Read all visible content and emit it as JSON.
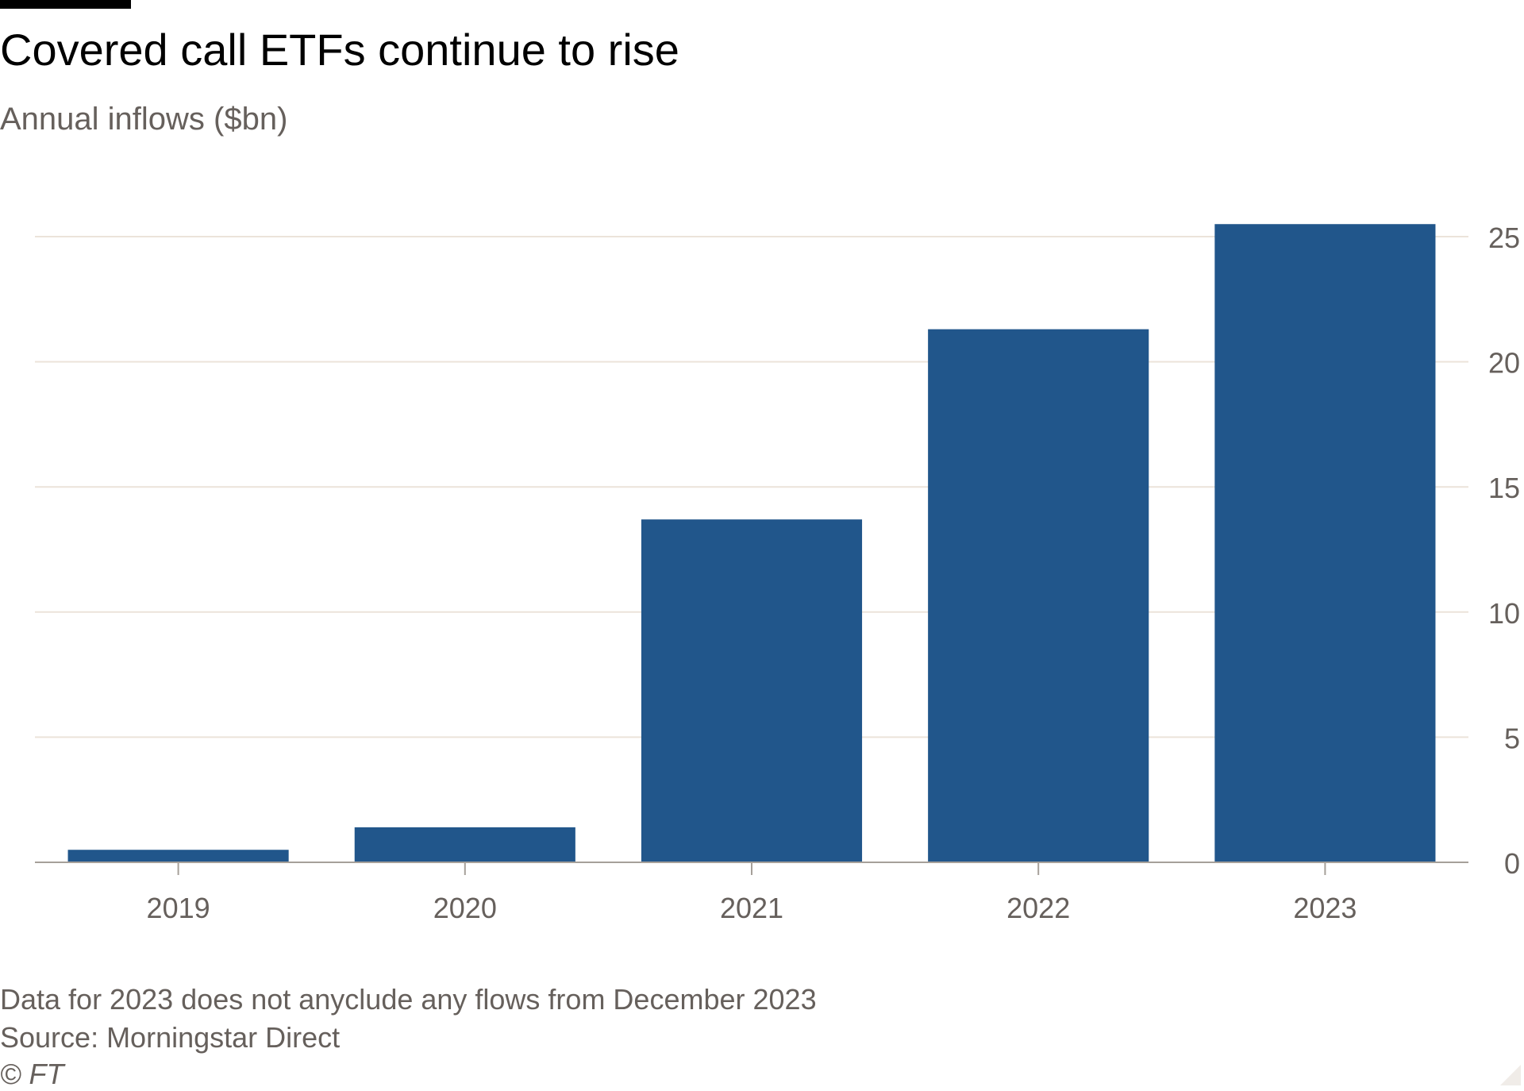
{
  "header": {
    "title": "Covered call ETFs continue to rise",
    "subtitle": "Annual inflows ($bn)"
  },
  "footer": {
    "note": "Data for 2023 does not anyclude any flows from December 2023",
    "source": "Source: Morningstar Direct",
    "copyright": "© FT"
  },
  "colors": {
    "bar": "#21568b",
    "gridline": "#ece3da",
    "axis": "#a6a09a",
    "tick_label": "#66605c"
  },
  "chart_data": {
    "type": "bar",
    "title": "Covered call ETFs continue to rise",
    "subtitle": "Annual inflows ($bn)",
    "categories": [
      "2019",
      "2020",
      "2021",
      "2022",
      "2023"
    ],
    "values": [
      0.5,
      1.4,
      13.7,
      21.3,
      25.5
    ],
    "ylim": [
      0,
      25
    ],
    "yticks": [
      0,
      5,
      10,
      15,
      20,
      25
    ],
    "y_axis_side": "right",
    "grid": true
  }
}
